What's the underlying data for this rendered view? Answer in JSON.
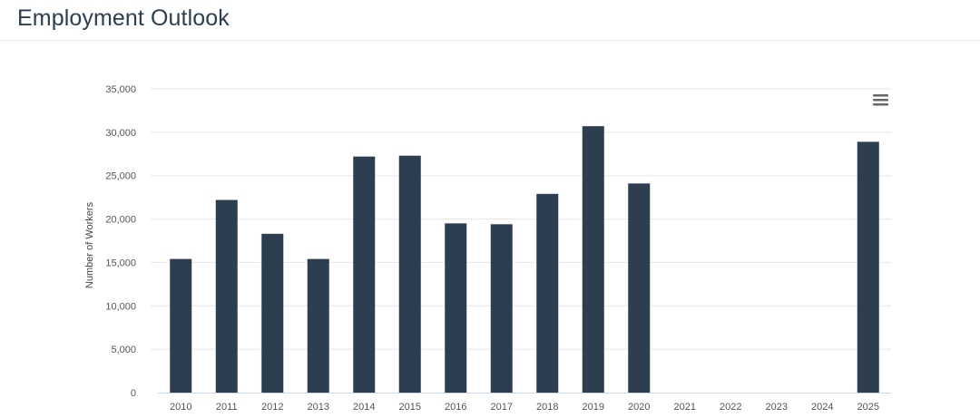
{
  "header": {
    "title": "Employment Outlook"
  },
  "chart_menu": {
    "icon": "hamburger-menu-icon"
  },
  "colors": {
    "bar": "#2c3e50",
    "grid": "#e6e6e6",
    "axis_text": "#555555"
  },
  "chart_data": {
    "type": "bar",
    "title": "",
    "xlabel": "",
    "ylabel": "Number of Workers",
    "categories": [
      "2010",
      "2011",
      "2012",
      "2013",
      "2014",
      "2015",
      "2016",
      "2017",
      "2018",
      "2019",
      "2020",
      "2021",
      "2022",
      "2023",
      "2024",
      "2025"
    ],
    "values": [
      15400,
      22200,
      18300,
      15400,
      27200,
      27300,
      19500,
      19400,
      22900,
      30700,
      24100,
      null,
      null,
      null,
      null,
      28900
    ],
    "ylim": [
      0,
      35000
    ],
    "yticks": [
      "0",
      "5,000",
      "10,000",
      "15,000",
      "20,000",
      "25,000",
      "30,000",
      "35,000"
    ],
    "grid": true,
    "legend": "none"
  }
}
